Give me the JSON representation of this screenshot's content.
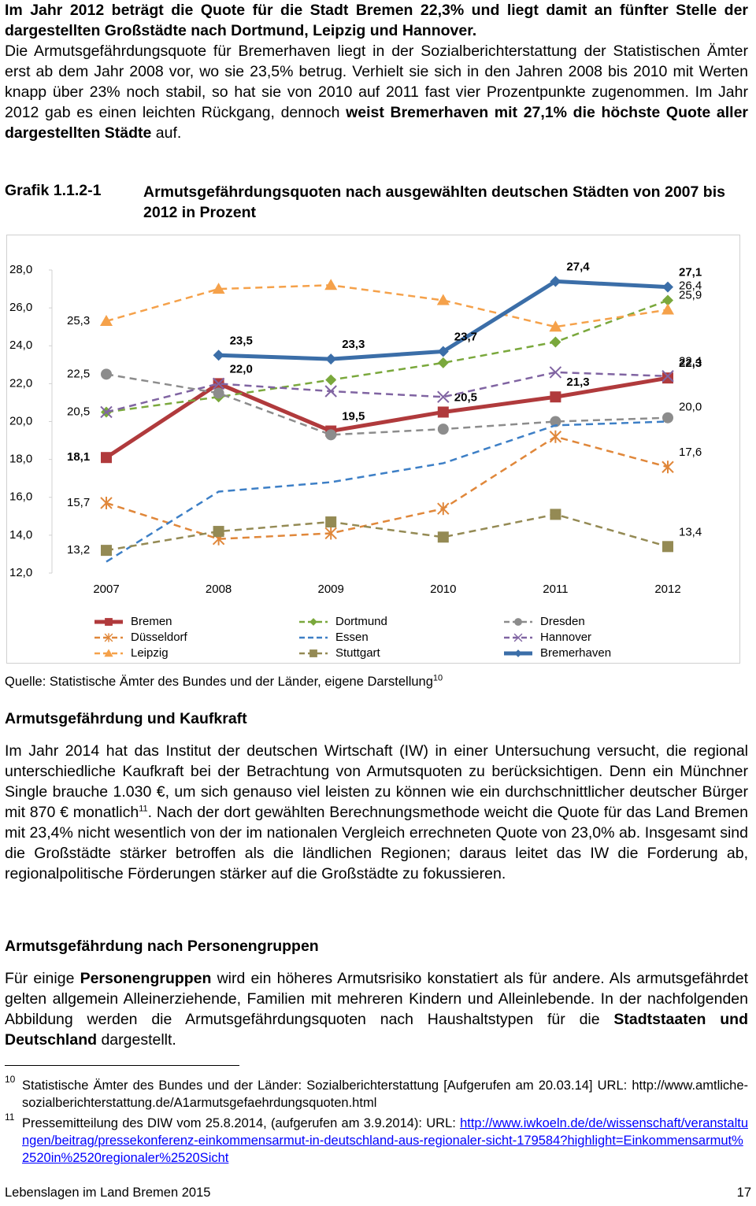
{
  "intro": [
    [
      {
        "text": "Im Jahr 2012 beträgt die Quote für die Stadt Bremen 22,3% und liegt damit an fünfter Stelle der dargestellten Großstädte nach Dortmund, Leipzig und Hannover.",
        "bold": true
      }
    ],
    [
      "Die Armutsgefährdungsquote für Bremerhaven liegt in der Sozialberichterstattung der Statistischen Ämter erst ab dem Jahr 2008 vor, wo sie 23,5% betrug. Verhielt sie sich in den Jahren 2008 bis 2010 mit Werten knapp über 23% noch stabil, so hat sie von 2010 auf 2011 fast vier Prozentpunkte zugenommen. Im Jahr 2012 gab es einen leichten Rückgang, dennoch ",
      {
        "text": "weist Bremerhaven mit 27,1% die höchste Quote aller dargestellten Städte",
        "bold": true
      },
      " auf."
    ]
  ],
  "figure_label": "Grafik 1.1.2-1",
  "figure_caption": "Armutsgefährdungsquoten nach ausgewählten deutschen Städten von 2007 bis 2012 in Prozent",
  "chart_data": {
    "type": "line",
    "categories": [
      "2007",
      "2008",
      "2009",
      "2010",
      "2011",
      "2012"
    ],
    "ylim": [
      12,
      28
    ],
    "yticks": [
      {
        "value": 12,
        "label": "12,0"
      },
      {
        "value": 14,
        "label": "14,0"
      },
      {
        "value": 16,
        "label": "16,0"
      },
      {
        "value": 18,
        "label": "18,0"
      },
      {
        "value": 20,
        "label": "20,0"
      },
      {
        "value": 22,
        "label": "22,0"
      },
      {
        "value": 24,
        "label": "24,0"
      },
      {
        "value": 26,
        "label": "26,0"
      },
      {
        "value": 28,
        "label": "28,0"
      }
    ],
    "grid": false,
    "series": [
      {
        "name": "Bremen",
        "color": "#b03a3c",
        "marker": "square",
        "dashed": false,
        "values": [
          18.1,
          22.0,
          19.5,
          20.5,
          21.3,
          22.3
        ],
        "value_labels": [
          "18,1",
          "22,0",
          "19,5",
          "20,5",
          "21,3",
          "22,3"
        ]
      },
      {
        "name": "Dortmund",
        "color": "#7aa83c",
        "marker": "diamond",
        "dashed": true,
        "values": [
          20.5,
          21.3,
          22.2,
          23.1,
          24.2,
          26.4
        ],
        "value_labels": [
          "20,5",
          null,
          null,
          null,
          null,
          "26,4"
        ]
      },
      {
        "name": "Dresden",
        "color": "#8c8c8c",
        "marker": "circle",
        "dashed": true,
        "values": [
          22.5,
          21.5,
          19.3,
          19.6,
          20.0,
          20.2
        ],
        "value_labels": [
          "22,5",
          null,
          null,
          null,
          null,
          null
        ]
      },
      {
        "name": "Düsseldorf",
        "color": "#e0873a",
        "marker": "asterisk",
        "dashed": true,
        "values": [
          15.7,
          13.8,
          14.1,
          15.4,
          19.2,
          17.6
        ],
        "value_labels": [
          "15,7",
          null,
          null,
          null,
          null,
          "17,6"
        ]
      },
      {
        "name": "Essen",
        "color": "#3d7fc6",
        "marker": "none",
        "dashed": true,
        "values": [
          12.6,
          16.3,
          16.8,
          17.8,
          19.8,
          20.0
        ],
        "value_labels": [
          null,
          null,
          null,
          null,
          null,
          "20,0"
        ]
      },
      {
        "name": "Hannover",
        "color": "#8064a2",
        "marker": "x",
        "dashed": true,
        "values": [
          20.5,
          22.0,
          21.6,
          21.3,
          22.6,
          22.4
        ],
        "value_labels": [
          null,
          null,
          null,
          null,
          null,
          "22,4"
        ]
      },
      {
        "name": "Leipzig",
        "color": "#f5a14a",
        "marker": "triangle",
        "dashed": true,
        "values": [
          25.3,
          27.0,
          27.2,
          26.4,
          25.0,
          25.9
        ],
        "value_labels": [
          "25,3",
          null,
          null,
          null,
          null,
          "25,9"
        ]
      },
      {
        "name": "Stuttgart",
        "color": "#948a54",
        "marker": "square",
        "dashed": true,
        "values": [
          13.2,
          14.2,
          14.7,
          13.9,
          15.1,
          13.4
        ],
        "value_labels": [
          "13,2",
          null,
          null,
          null,
          null,
          "13,4"
        ]
      },
      {
        "name": "Bremerhaven",
        "color": "#3b6ea8",
        "marker": "diamond",
        "dashed": false,
        "values": [
          null,
          23.5,
          23.3,
          23.7,
          27.4,
          27.1
        ],
        "value_labels": [
          null,
          "23,5",
          "23,3",
          "23,7",
          "27,4",
          "27,1"
        ]
      }
    ]
  },
  "source": [
    "Quelle: Statistische Ämter des Bundes und der Länder, eigene Darstellung",
    {
      "sup": "10"
    }
  ],
  "section1": {
    "heading": "Armutsgefährdung und Kaufkraft",
    "text": [
      "Im Jahr 2014 hat das Institut der deutschen Wirtschaft (IW) in einer Untersuchung versucht, die regional unterschiedliche Kaufkraft bei der Betrachtung von Armutsquoten zu berücksichtigen. Denn ein Münchner Single brauche 1.030 €, um sich genauso viel leisten zu können wie ein durchschnittlicher deutscher Bürger mit 870 € monatlich",
      {
        "sup": "11"
      },
      ". Nach der dort gewählten Berechnungsmethode weicht die Quote für das Land Bremen mit 23,4% nicht wesentlich von der im nationalen Vergleich errechneten Quote von 23,0% ab. Insgesamt sind die Großstädte stärker betroffen als die ländlichen Regionen; daraus leitet das IW die Forderung ab, regionalpolitische Förderungen stärker auf die Großstädte zu fokussieren."
    ]
  },
  "section2": {
    "heading": "Armutsgefährdung nach Personengruppen",
    "text": [
      "Für einige ",
      {
        "text": "Personengruppen",
        "bold": true
      },
      " wird ein höheres Armutsrisiko konstatiert als für andere. Als armutsgefährdet gelten allgemein Alleinerziehende, Familien mit mehreren Kindern und Alleinlebende. In der nachfolgenden Abbildung werden die Armutsgefährdungsquoten nach Haushaltstypen für die ",
      {
        "text": "Stadtstaaten und Deutschland",
        "bold": true
      },
      " dargestellt."
    ]
  },
  "footnotes": [
    {
      "number": "10",
      "text": [
        "Statistische Ämter des Bundes und der Länder: Sozialberichterstattung [Aufgerufen am 20.03.14] URL: http://www.amtliche-sozialberichterstattung.de/A1armutsgefaehrdungsquoten.html"
      ]
    },
    {
      "number": "11",
      "text": [
        "Pressemitteilung des DIW vom 25.8.2014, (aufgerufen am 3.9.2014): URL: ",
        {
          "link": "http://www.iwkoeln.de/de/wissenschaft/veranstaltungen/beitrag/pressekonferenz-einkommensarmut-in-deutschland-aus-regionaler-sicht-179584?highlight=Einkommensarmut%2520in%2520regionaler%2520Sicht"
        }
      ]
    }
  ],
  "footer": {
    "left": "Lebenslagen im Land Bremen 2015",
    "page": "17"
  }
}
